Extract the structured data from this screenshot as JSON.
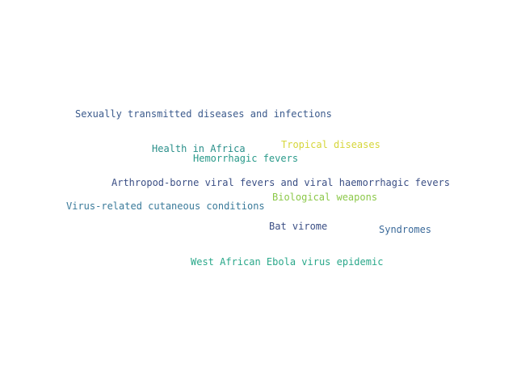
{
  "words": [
    {
      "text": "Sexually transmitted diseases and infections",
      "color": "#3b5a8c"
    },
    {
      "text": "Health in Africa",
      "color": "#2a8f8a"
    },
    {
      "text": "Tropical diseases",
      "color": "#d6d63a"
    },
    {
      "text": "Hemorrhagic fevers",
      "color": "#2a9a8a"
    },
    {
      "text": "Arthropod-borne viral fevers and viral haemorrhagic fevers",
      "color": "#3b4f85"
    },
    {
      "text": "Biological weapons",
      "color": "#8cc84a"
    },
    {
      "text": "Virus-related cutaneous conditions",
      "color": "#3a7a9a"
    },
    {
      "text": "Bat virome",
      "color": "#3b4f85"
    },
    {
      "text": "Syndromes",
      "color": "#3b6a9a"
    },
    {
      "text": "West African Ebola virus epidemic",
      "color": "#2aa88a"
    }
  ]
}
